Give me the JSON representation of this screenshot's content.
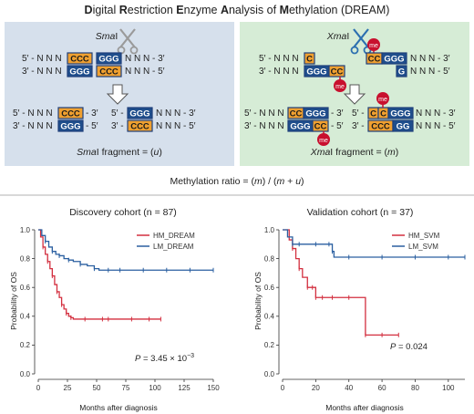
{
  "title": {
    "parts": [
      {
        "cap": "D",
        "rest": "igital "
      },
      {
        "cap": "R",
        "rest": "estriction "
      },
      {
        "cap": "E",
        "rest": "nzyme "
      },
      {
        "cap": "A",
        "rest": "nalysis of "
      },
      {
        "cap": "M",
        "rest": "ethylation (DREAM)"
      }
    ]
  },
  "smai_panel": {
    "enzyme": "SmaI",
    "enzyme_italic": "Sma",
    "enzyme_suffix": "I",
    "fragment_label_prefix": "Sma",
    "fragment_label_mid": "I fragment = (",
    "fragment_var": "u",
    "fragment_label_suffix": ")"
  },
  "xmai_panel": {
    "enzyme_italic": "Xma",
    "enzyme_suffix": "I",
    "me_label": "me",
    "fragment_label_prefix": "Xma",
    "fragment_label_mid": "I fragment = (",
    "fragment_var": "m",
    "fragment_label_suffix": ")"
  },
  "sequence": {
    "p5": "5′ - N N N",
    "p3": "3′ - N N N",
    "s3": "N N N - 3′",
    "s5": "N N N - 5′",
    "ccc": "CCC",
    "ggg": "GGG",
    "c": "C",
    "g": "G",
    "cc": "CC",
    "gg": "GG",
    "cggg": "CCGGG",
    "gggcc": "GGGCC",
    "e3": "- 3′",
    "e5": "- 5′",
    "b5": "5′ -",
    "b3": "3′ -"
  },
  "ratio": {
    "prefix": "Methylation ratio = (",
    "m": "m",
    "mid": ") / (",
    "m2": "m",
    "plus": " + ",
    "u": "u",
    "suffix": ")"
  },
  "chart_data": [
    {
      "type": "line",
      "title": "Discovery cohort (n = 87)",
      "xlabel": "Months after diagnosis",
      "ylabel": "Probability of OS",
      "xlim": [
        0,
        150
      ],
      "ylim": [
        0,
        1.0
      ],
      "xticks": [
        "0",
        "25",
        "50",
        "75",
        "100",
        "125",
        "150"
      ],
      "yticks": [
        "0.0",
        "0.2",
        "0.4",
        "0.6",
        "0.8",
        "1.0"
      ],
      "pvalue": "P = 3.45 × 10",
      "pvalue_exp": "−3",
      "series": [
        {
          "name": "HM_DREAM",
          "color": "#d32f3f",
          "x": [
            0,
            2,
            4,
            6,
            8,
            10,
            12,
            14,
            16,
            18,
            20,
            22,
            24,
            26,
            28,
            30,
            40,
            55,
            60,
            80,
            95,
            105
          ],
          "y": [
            1.0,
            0.95,
            0.88,
            0.83,
            0.78,
            0.73,
            0.68,
            0.62,
            0.57,
            0.53,
            0.48,
            0.45,
            0.42,
            0.4,
            0.39,
            0.38,
            0.38,
            0.38,
            0.38,
            0.38,
            0.38,
            0.38
          ]
        },
        {
          "name": "LM_DREAM",
          "color": "#2a5fa0",
          "x": [
            0,
            3,
            6,
            9,
            12,
            15,
            18,
            22,
            26,
            30,
            36,
            42,
            48,
            52,
            60,
            70,
            90,
            110,
            130,
            150
          ],
          "y": [
            1.0,
            0.96,
            0.92,
            0.88,
            0.85,
            0.83,
            0.82,
            0.8,
            0.79,
            0.78,
            0.76,
            0.75,
            0.73,
            0.72,
            0.72,
            0.72,
            0.72,
            0.72,
            0.72,
            0.72
          ]
        }
      ]
    },
    {
      "type": "line",
      "title": "Validation cohort (n = 37)",
      "xlabel": "Months after diagnosis",
      "ylabel": "Probability of OS",
      "xlim": [
        0,
        110
      ],
      "ylim": [
        0,
        1.0
      ],
      "xticks": [
        "0",
        "20",
        "40",
        "60",
        "80",
        "100"
      ],
      "yticks": [
        "0.0",
        "0.2",
        "0.4",
        "0.6",
        "0.8",
        "1.0"
      ],
      "pvalue": "P = 0.024",
      "pvalue_exp": "",
      "series": [
        {
          "name": "HM_SVM",
          "color": "#d32f3f",
          "x": [
            0,
            4,
            6,
            8,
            10,
            12,
            15,
            18,
            20,
            24,
            30,
            40,
            50,
            60,
            70
          ],
          "y": [
            1.0,
            0.93,
            0.87,
            0.8,
            0.73,
            0.67,
            0.6,
            0.6,
            0.53,
            0.53,
            0.53,
            0.53,
            0.27,
            0.27,
            0.27
          ]
        },
        {
          "name": "LM_SVM",
          "color": "#2a5fa0",
          "x": [
            0,
            3,
            6,
            10,
            20,
            28,
            30,
            31,
            40,
            60,
            80,
            100,
            110
          ],
          "y": [
            1.0,
            0.95,
            0.9,
            0.9,
            0.9,
            0.9,
            0.85,
            0.81,
            0.81,
            0.81,
            0.81,
            0.81,
            0.81
          ]
        }
      ]
    }
  ],
  "colors": {
    "smai_bg": "#d6e0ec",
    "xmai_bg": "#d6ecd6",
    "orange": "#f0a030",
    "blue": "#1f4e8c",
    "me_red": "#c8102e",
    "hm_red": "#d32f3f",
    "lm_blue": "#2a5fa0"
  }
}
